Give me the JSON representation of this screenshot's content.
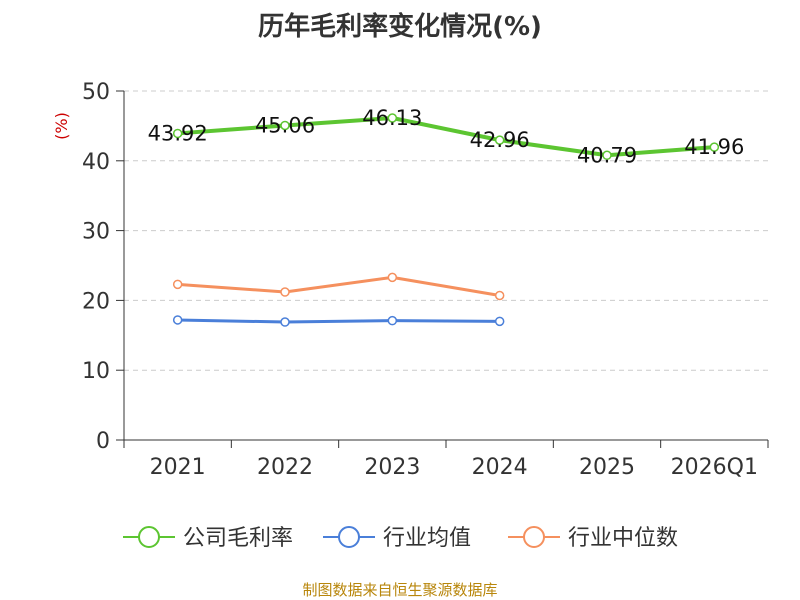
{
  "chart_data": {
    "type": "line",
    "title": "历年毛利率变化情况(%)",
    "ylabel": "(%)",
    "xlabel": "",
    "categories": [
      "2021",
      "2022",
      "2023",
      "2024",
      "2025",
      "2026Q1"
    ],
    "yticks": [
      "0",
      "10",
      "20",
      "30",
      "40",
      "50"
    ],
    "ylim": [
      0,
      50
    ],
    "grid": true,
    "legend_position": "bottom",
    "series": [
      {
        "name": "公司毛利率",
        "color": "#5cc531",
        "values": [
          43.92,
          45.06,
          46.13,
          42.96,
          40.79,
          41.96
        ],
        "labels": [
          "43.92",
          "45.06",
          "46.13",
          "42.96",
          "40.79",
          "41.96"
        ]
      },
      {
        "name": "行业均值",
        "color": "#4a7fd9",
        "values": [
          17.2,
          16.9,
          17.1,
          17.0,
          null,
          null
        ]
      },
      {
        "name": "行业中位数",
        "color": "#f5905e",
        "values": [
          22.3,
          21.2,
          23.3,
          20.7,
          null,
          null
        ]
      }
    ]
  },
  "footer": {
    "source": "制图数据来自恒生聚源数据库"
  }
}
